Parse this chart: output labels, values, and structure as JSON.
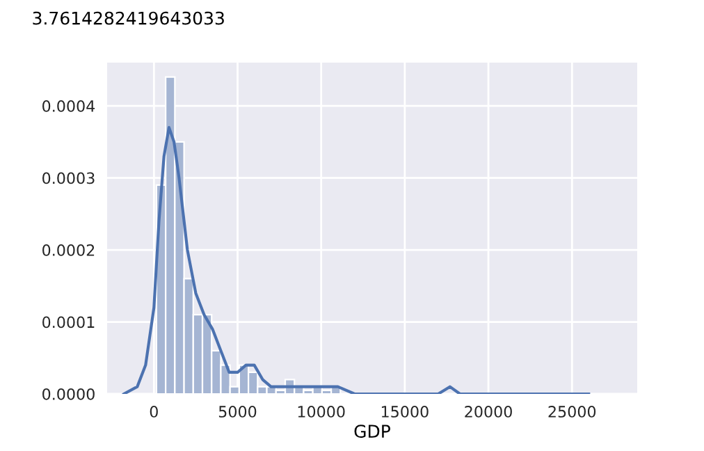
{
  "chart_data": {
    "type": "histogram",
    "xlabel": "GDP",
    "annotations": [
      "3.7614282419643033"
    ],
    "series": [
      {
        "color": "#a5b5d3",
        "bins": [
          150,
          700,
          1250,
          1800,
          2350,
          2900,
          3450,
          4000,
          4550,
          5100,
          5650,
          6200,
          6750,
          7300,
          7850,
          8400,
          8950,
          9500,
          10050,
          10600,
          11150,
          11700,
          12250,
          12800,
          13350,
          13900,
          14450,
          15000,
          15550,
          16100,
          16650,
          17200,
          17750,
          18300,
          18850,
          19400,
          19950,
          20500,
          21050,
          21600,
          22150,
          22700,
          23250,
          23800,
          24350,
          24900,
          25450
        ],
        "values": [
          0.00029,
          0.00044,
          0.00035,
          0.00016,
          0.00011,
          0.00011,
          6e-05,
          4e-05,
          1e-05,
          4e-05,
          3e-05,
          1e-05,
          1e-05,
          5e-06,
          2e-05,
          1e-05,
          5e-06,
          1e-05,
          5e-06,
          1e-05,
          0,
          0,
          0,
          0,
          0,
          0,
          0,
          0,
          0,
          0,
          0,
          0,
          0,
          0,
          0,
          0,
          0,
          0,
          0,
          0,
          0,
          0,
          0,
          0,
          0,
          0
        ]
      },
      {
        "type": "line",
        "color": "#4c72b0",
        "x": [
          -1800,
          -1000,
          -500,
          0,
          300,
          600,
          900,
          1200,
          1500,
          2000,
          2500,
          3000,
          3500,
          4000,
          4500,
          5000,
          5500,
          6000,
          6500,
          7000,
          7500,
          8000,
          9000,
          10000,
          11000,
          12000,
          13000,
          14000,
          15000,
          16000,
          17000,
          17700,
          18300,
          19000,
          21000,
          22000,
          23000,
          24000,
          25000,
          26000
        ],
        "values": [
          0,
          1e-05,
          4e-05,
          0.00012,
          0.00024,
          0.00033,
          0.00037,
          0.00035,
          0.0003,
          0.0002,
          0.00014,
          0.00011,
          9e-05,
          6e-05,
          3e-05,
          3e-05,
          4e-05,
          4e-05,
          2e-05,
          1e-05,
          1e-05,
          1e-05,
          1e-05,
          1e-05,
          1e-05,
          0,
          0,
          0,
          0,
          0,
          0,
          1e-05,
          0,
          0,
          0,
          0,
          0,
          0,
          0,
          0
        ]
      }
    ],
    "xlim": [
      -2800,
      28900
    ],
    "xticks": [
      0,
      5000,
      10000,
      15000,
      20000,
      25000
    ],
    "ylim": [
      0,
      0.00046
    ],
    "yticks": [
      {
        "value": 0,
        "label": "0.0000"
      },
      {
        "value": 0.0001,
        "label": "0.0001"
      },
      {
        "value": 0.0002,
        "label": "0.0002"
      },
      {
        "value": 0.0003,
        "label": "0.0003"
      },
      {
        "value": 0.0004,
        "label": "0.0004"
      }
    ],
    "grid": true
  }
}
